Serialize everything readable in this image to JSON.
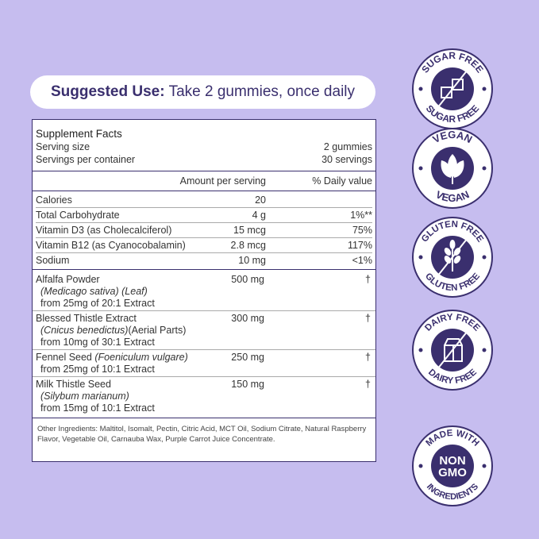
{
  "suggested_use": {
    "label": "Suggested Use:",
    "text": "Take 2 gummies, once daily"
  },
  "facts": {
    "title": "Supplement Facts",
    "serving_size_label": "Serving size",
    "serving_size": "2 gummies",
    "servings_label": "Servings per container",
    "servings": "30 servings",
    "amount_header": "Amount per serving",
    "dv_header": "% Daily value",
    "nutrients": [
      {
        "name": "Calories",
        "amount": "20",
        "dv": ""
      },
      {
        "name": "Total Carbohydrate",
        "amount": "4 g",
        "dv": "1%**"
      },
      {
        "name": "Vitamin D3 (as Cholecalciferol)",
        "amount": "15 mcg",
        "dv": "75%"
      },
      {
        "name": "Vitamin B12 (as Cyanocobalamin)",
        "amount": "2.8 mcg",
        "dv": "117%"
      },
      {
        "name": "Sodium",
        "amount": "10 mg",
        "dv": "<1%"
      }
    ],
    "ingredients": [
      {
        "name": "Alfalfa Powder",
        "latin": "(Medicago sativa) (Leaf)",
        "extra": "",
        "source": "from 25mg of 20:1 Extract",
        "amount": "500 mg",
        "dv": "†"
      },
      {
        "name": "Blessed Thistle Extract",
        "latin": "(Cnicus benedictus)",
        "extra": "(Aerial Parts)",
        "source": "from 10mg of 30:1 Extract",
        "amount": "300 mg",
        "dv": "†"
      },
      {
        "name": "Fennel Seed",
        "latin": "(Foeniculum vulgare)",
        "extra": "",
        "source": "from 25mg of 10:1 Extract",
        "amount": "250 mg",
        "dv": "†"
      },
      {
        "name": "Milk Thistle Seed",
        "latin": "(Silybum marianum)",
        "extra": "",
        "source": "from 15mg of 10:1 Extract",
        "amount": "150 mg",
        "dv": "†"
      }
    ],
    "other_ingredients": "Other Ingredients: Maltitol, Isomalt, Pectin, Citric Acid, MCT Oil, Sodium Citrate, Natural Raspberry Flavor, Vegetable Oil, Carnauba Wax, Purple Carrot Juice Concentrate."
  },
  "badges": [
    {
      "top": "SUGAR FREE",
      "bottom": "SUGAR FREE",
      "icon": "sugar-cubes-icon"
    },
    {
      "top": "VEGAN",
      "bottom": "VEGAN",
      "icon": "leaf-icon"
    },
    {
      "top": "GLUTEN FREE",
      "bottom": "GLUTEN FREE",
      "icon": "wheat-icon"
    },
    {
      "top": "DAIRY FREE",
      "bottom": "DAIRY FREE",
      "icon": "milk-carton-icon"
    },
    {
      "top": "MADE WITH",
      "bottom": "INGREDIENTS",
      "center": "NON GMO",
      "center_line1": "NON",
      "center_line2": "GMO",
      "icon": "non-gmo-icon"
    }
  ],
  "colors": {
    "background": "#c6bdef",
    "brand": "#3a2f6e"
  }
}
